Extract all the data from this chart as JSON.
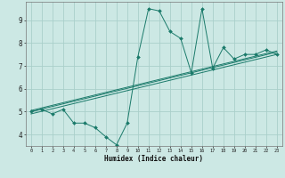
{
  "title": "",
  "xlabel": "Humidex (Indice chaleur)",
  "ylabel": "",
  "bg_color": "#cce8e4",
  "grid_color": "#aacfca",
  "line_color": "#1a7a6a",
  "xlim": [
    -0.5,
    23.5
  ],
  "ylim": [
    3.5,
    9.8
  ],
  "xtick_labels": [
    "0",
    "1",
    "2",
    "3",
    "4",
    "5",
    "6",
    "7",
    "8",
    "9",
    "10",
    "11",
    "12",
    "13",
    "14",
    "15",
    "16",
    "17",
    "18",
    "19",
    "20",
    "21",
    "22",
    "23"
  ],
  "ytick_values": [
    4,
    5,
    6,
    7,
    8,
    9
  ],
  "scatter_x": [
    0,
    1,
    2,
    3,
    4,
    5,
    6,
    7,
    8,
    9,
    10,
    11,
    12,
    13,
    14,
    15,
    16,
    17,
    18,
    19,
    20,
    21,
    22,
    23
  ],
  "scatter_y": [
    5.0,
    5.1,
    4.9,
    5.1,
    4.5,
    4.5,
    4.3,
    3.9,
    3.55,
    4.5,
    7.4,
    9.5,
    9.4,
    8.5,
    8.2,
    6.7,
    9.5,
    6.9,
    7.8,
    7.3,
    7.5,
    7.5,
    7.7,
    7.5
  ],
  "reg_lines": [
    [
      [
        0,
        23
      ],
      [
        4.9,
        7.5
      ]
    ],
    [
      [
        0,
        23
      ],
      [
        5.0,
        7.6
      ]
    ],
    [
      [
        0,
        23
      ],
      [
        5.05,
        7.65
      ]
    ]
  ]
}
